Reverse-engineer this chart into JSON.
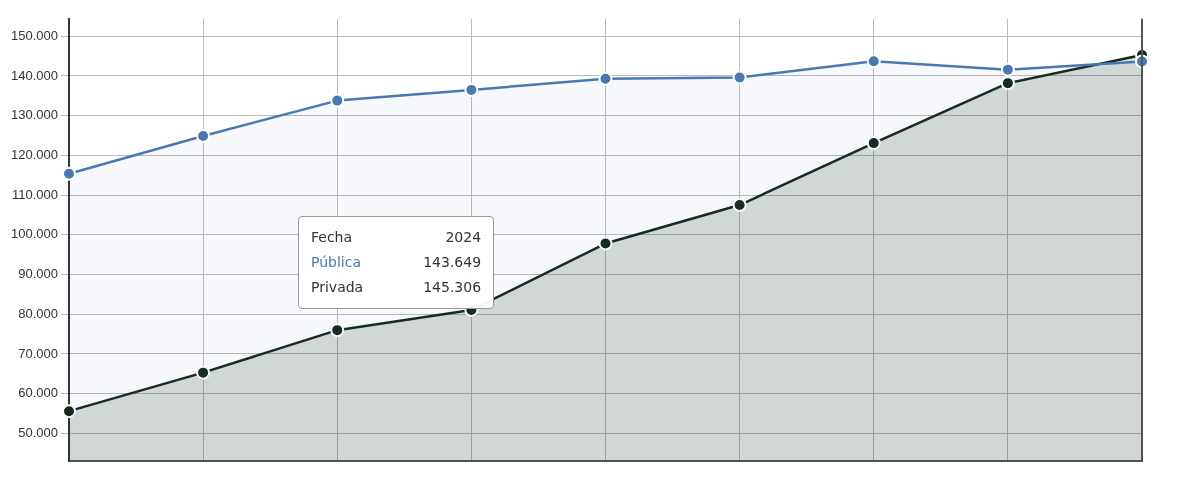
{
  "chart_data": {
    "type": "area",
    "categories": [
      null,
      null,
      null,
      null,
      null,
      null,
      null,
      null,
      null
    ],
    "series": [
      {
        "name": "Pública",
        "color": "#4a78b0",
        "values": [
          115400,
          124900,
          133800,
          136500,
          139300,
          139600,
          143700,
          141600,
          143649
        ]
      },
      {
        "name": "Privada",
        "color": "#15291a",
        "values": [
          55600,
          65300,
          76000,
          81100,
          97800,
          107500,
          123100,
          138200,
          145306
        ]
      }
    ],
    "ylim": [
      43000,
      154400
    ],
    "yticks": [
      {
        "value": 50000,
        "label": "50.000"
      },
      {
        "value": 60000,
        "label": "60.000"
      },
      {
        "value": 70000,
        "label": "70.000"
      },
      {
        "value": 80000,
        "label": "80.000"
      },
      {
        "value": 90000,
        "label": "90.000"
      },
      {
        "value": 100000,
        "label": "100.000"
      },
      {
        "value": 110000,
        "label": "110.000"
      },
      {
        "value": 120000,
        "label": "120.000"
      },
      {
        "value": 130000,
        "label": "130.000"
      },
      {
        "value": 140000,
        "label": "140.000"
      },
      {
        "value": 150000,
        "label": "150.000"
      }
    ],
    "grid": true,
    "legend": false,
    "marker": "circle",
    "tick_labels": "y",
    "annotations": [
      "Fecha",
      "2024",
      "143.649",
      "145.306"
    ]
  }
}
